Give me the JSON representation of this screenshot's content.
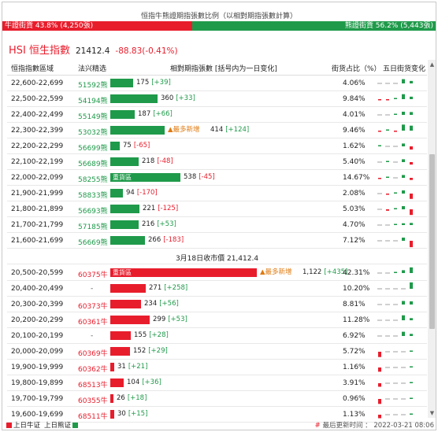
{
  "header": {
    "title": "恒指牛熊證期指張數比例（以相對期指張數計算）",
    "bull_label": "牛證街貨 43.8% (4,250張)",
    "bear_label": "熊證街貨 56.2% (5,443張)",
    "bull_ratio": 0.438,
    "bear_ratio": 0.562
  },
  "index": {
    "name": "HSI 恒生指數",
    "price": "21412.4",
    "change": "-88.83(-0.41%)"
  },
  "table": {
    "headers": [
      "恒指指數區域",
      "法兴精选",
      "相對期指張數 [括号内为一日变化]",
      "街货占比（%）",
      "五日街货变化"
    ],
    "bear_rows": [
      {
        "range": "22,600-22,699",
        "code": "51592熊",
        "amount": "175",
        "change": "[+39]",
        "pct": "4.06%",
        "spark": [
          0,
          0,
          0,
          0.6,
          0.35
        ]
      },
      {
        "range": "22,500-22,599",
        "code": "54194熊",
        "amount": "360",
        "change": "[+33]",
        "pct": "9.84%",
        "spark": [
          -0.1,
          -0.05,
          0.1,
          0.7,
          0.35
        ]
      },
      {
        "range": "22,400-22,499",
        "code": "55149熊",
        "amount": "187",
        "change": "[+66]",
        "pct": "4.01%",
        "spark": [
          0,
          0,
          0.08,
          0.45,
          0.4
        ]
      },
      {
        "range": "22,300-22,399",
        "code": "53032熊",
        "amount": "414",
        "change": "[+124]",
        "pct": "9.46%",
        "newest": "▲最多新增",
        "spark": [
          -0.1,
          0.08,
          -0.1,
          0.85,
          0.7
        ]
      },
      {
        "range": "22,200-22,299",
        "code": "56699熊",
        "amount": "75",
        "change": "[-65]",
        "pct": "1.62%",
        "spark": [
          0.05,
          0,
          0,
          0.4,
          -0.45
        ]
      },
      {
        "range": "22,100-22,199",
        "code": "56689熊",
        "amount": "218",
        "change": "[-48]",
        "pct": "5.40%",
        "spark": [
          0,
          0.05,
          0,
          0.4,
          -0.35
        ]
      },
      {
        "range": "22,000-22,099",
        "code": "58255熊",
        "amount": "538",
        "change": "[-45]",
        "pct": "14.67%",
        "label": "重貨區",
        "spark": [
          -0.08,
          0.1,
          0,
          0.4,
          -0.3
        ]
      },
      {
        "range": "21,900-21,999",
        "code": "58833熊",
        "amount": "94",
        "change": "[-170]",
        "pct": "2.08%",
        "spark": [
          0,
          -0.08,
          0.08,
          0.45,
          -0.75
        ]
      },
      {
        "range": "21,800-21,899",
        "code": "56693熊",
        "amount": "221",
        "change": "[-125]",
        "pct": "5.03%",
        "spark": [
          0,
          -0.2,
          0.1,
          0.45,
          -0.8
        ]
      },
      {
        "range": "21,700-21,799",
        "code": "57185熊",
        "amount": "216",
        "change": "[+53]",
        "pct": "4.70%",
        "spark": [
          0,
          0,
          0.05,
          0.25,
          0.3
        ]
      },
      {
        "range": "21,600-21,699",
        "code": "56669熊",
        "amount": "266",
        "change": "[-183]",
        "pct": "7.12%",
        "spark": [
          0,
          0,
          0,
          0.45,
          -0.9
        ]
      }
    ],
    "separator": "3月18日收市價 21,412.4",
    "bull_rows": [
      {
        "range": "20,500-20,599",
        "code": "60375牛",
        "amount": "1,122",
        "change": "[+435]",
        "pct": "42.31%",
        "label": "重貨區",
        "newest": "▲最多新增",
        "spark": [
          0,
          0,
          0.05,
          0.4,
          0.8
        ]
      },
      {
        "range": "20,400-20,499",
        "code": "-",
        "amount": "271",
        "change": "[+258]",
        "pct": "10.20%",
        "spark": [
          0,
          0,
          0,
          0,
          0.9
        ]
      },
      {
        "range": "20,300-20,399",
        "code": "60373牛",
        "amount": "234",
        "change": "[+56]",
        "pct": "8.81%",
        "spark": [
          0,
          0,
          0,
          0.5,
          0.45
        ]
      },
      {
        "range": "20,200-20,299",
        "code": "60361牛",
        "amount": "299",
        "change": "[+53]",
        "pct": "11.28%",
        "spark": [
          0,
          0,
          0,
          0.7,
          0.3
        ]
      },
      {
        "range": "20,100-20,199",
        "code": "-",
        "amount": "155",
        "change": "[+28]",
        "pct": "6.92%",
        "spark": [
          0,
          0,
          0,
          0.6,
          0.3
        ]
      },
      {
        "range": "20,000-20,099",
        "code": "60369牛",
        "amount": "152",
        "change": "[+29]",
        "pct": "5.72%",
        "spark": [
          -0.75,
          0,
          0,
          0,
          0.1
        ]
      },
      {
        "range": "19,900-19,999",
        "code": "60362牛",
        "amount": "31",
        "change": "[+21]",
        "pct": "1.16%",
        "spark": [
          -0.6,
          0,
          0,
          0,
          0.05
        ]
      },
      {
        "range": "19,800-19,899",
        "code": "68513牛",
        "amount": "104",
        "change": "[+36]",
        "pct": "3.91%",
        "spark": [
          -0.5,
          0,
          0,
          0,
          0.08
        ]
      },
      {
        "range": "19,700-19,799",
        "code": "60355牛",
        "amount": "26",
        "change": "[+18]",
        "pct": "0.96%",
        "spark": [
          -0.7,
          0,
          0,
          0,
          0.05
        ]
      },
      {
        "range": "19,600-19,699",
        "code": "68511牛",
        "amount": "30",
        "change": "[+15]",
        "pct": "1.13%",
        "spark": [
          -0.5,
          0,
          0,
          0,
          0.05
        ]
      }
    ]
  },
  "footer": {
    "legend_up_bull": "上日牛证",
    "legend_up_bear": "上日熊证",
    "update_hash": "#",
    "update_label": "最后更新时间 ： 2022-03-21 08:06"
  },
  "colors": {
    "bull": "#e81d2c",
    "bear": "#1f9a4a",
    "newest": "#e07a10"
  },
  "icons": {
    "scroll_up": "triangle-up",
    "scroll_down": "triangle-down"
  }
}
